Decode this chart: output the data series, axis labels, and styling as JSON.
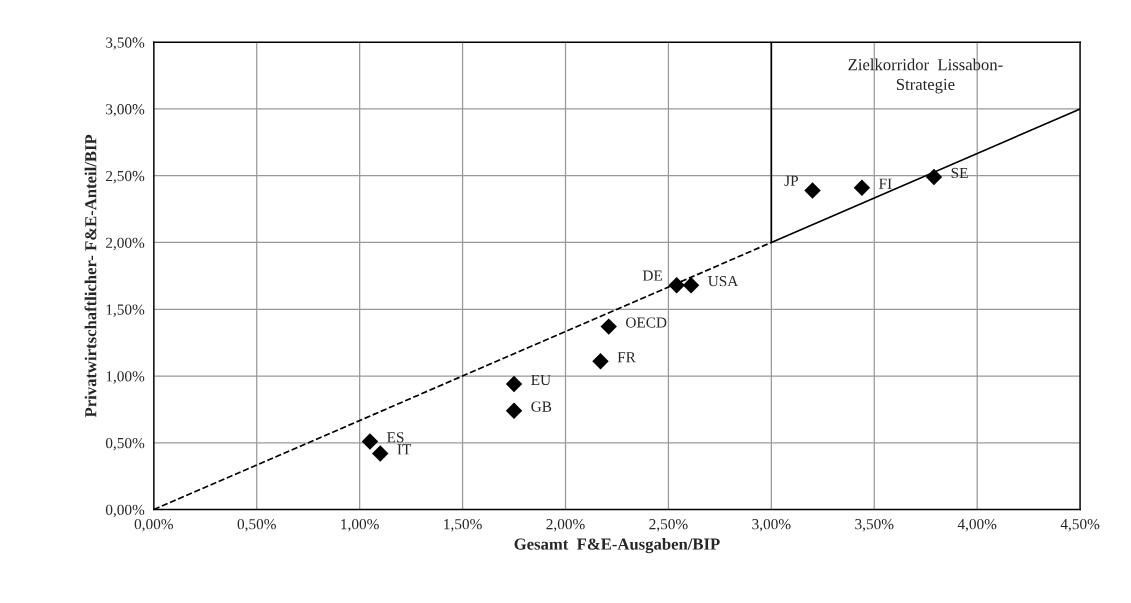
{
  "chart_data": {
    "type": "scatter",
    "xlabel": "Gesamt  F&E-Ausgaben/BIP",
    "ylabel": "Privatwirtschaftlicher- F&E-Anteil/BIP",
    "xlim": [
      0,
      4.5
    ],
    "ylim": [
      0,
      3.5
    ],
    "xticks": [
      {
        "value": 0,
        "label": "0,00%"
      },
      {
        "value": 0.5,
        "label": "0,50%"
      },
      {
        "value": 1.0,
        "label": "1,00%"
      },
      {
        "value": 1.5,
        "label": "1,50%"
      },
      {
        "value": 2.0,
        "label": "2,00%"
      },
      {
        "value": 2.5,
        "label": "2,50%"
      },
      {
        "value": 3.0,
        "label": "3,00%"
      },
      {
        "value": 3.5,
        "label": "3,50%"
      },
      {
        "value": 4.0,
        "label": "4,00%"
      },
      {
        "value": 4.5,
        "label": "4,50%"
      }
    ],
    "yticks": [
      {
        "value": 0,
        "label": "0,00%"
      },
      {
        "value": 0.5,
        "label": "0,50%"
      },
      {
        "value": 1.0,
        "label": "1,00%"
      },
      {
        "value": 1.5,
        "label": "1,50%"
      },
      {
        "value": 2.0,
        "label": "2,00%"
      },
      {
        "value": 2.5,
        "label": "2,50%"
      },
      {
        "value": 3.0,
        "label": "3,00%"
      },
      {
        "value": 3.5,
        "label": "3,50%"
      }
    ],
    "grid": true,
    "series": [
      {
        "color": "#000000",
        "marker": "diamond",
        "x": [
          1.05,
          1.1,
          1.75,
          1.75,
          2.17,
          2.21,
          2.54,
          2.61,
          3.2,
          3.44,
          3.79
        ],
        "values": [
          0.51,
          0.42,
          0.74,
          0.94,
          1.11,
          1.37,
          1.68,
          1.68,
          2.39,
          2.41,
          2.49
        ]
      },
      {
        "type": "line",
        "color": "#000000",
        "line_style": "dashed",
        "marker": "none",
        "x": [
          0,
          3.0
        ],
        "values": [
          0,
          2.0
        ]
      },
      {
        "type": "line",
        "color": "#000000",
        "line_style": "solid",
        "marker": "none",
        "x": [
          3.0,
          4.5
        ],
        "values": [
          2.0,
          3.0
        ]
      },
      {
        "type": "line",
        "color": "#000000",
        "line_style": "solid",
        "marker": "none",
        "x": [
          3.0,
          3.0
        ],
        "values": [
          2.0,
          3.5
        ]
      }
    ],
    "annotations": [
      {
        "text": "ES",
        "x": 1.05,
        "y": 0.51
      },
      {
        "text": "IT",
        "x": 1.1,
        "y": 0.42
      },
      {
        "text": "GB",
        "x": 1.75,
        "y": 0.74
      },
      {
        "text": "EU",
        "x": 1.75,
        "y": 0.94
      },
      {
        "text": "FR",
        "x": 2.17,
        "y": 1.11
      },
      {
        "text": "OECD",
        "x": 2.21,
        "y": 1.37
      },
      {
        "text": "DE",
        "x": 2.54,
        "y": 1.68
      },
      {
        "text": "USA",
        "x": 2.61,
        "y": 1.68
      },
      {
        "text": "JP",
        "x": 3.2,
        "y": 2.39
      },
      {
        "text": "FI",
        "x": 3.44,
        "y": 2.41
      },
      {
        "text": "SE",
        "x": 3.79,
        "y": 2.49
      },
      "Zielkorridor  Lissabon-\nStrategie"
    ]
  }
}
